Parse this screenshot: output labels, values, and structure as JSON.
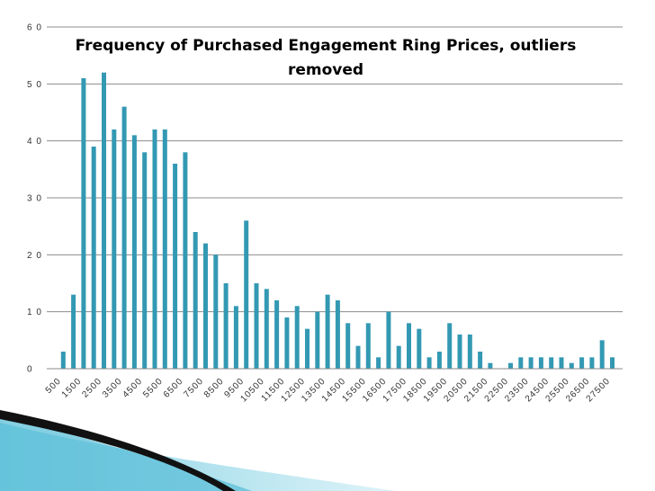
{
  "chart_data": {
    "type": "bar",
    "title": "Frequency of Purchased Engagement Ring Prices, outliers removed",
    "title_lines": [
      "Frequency of Purchased Engagement Ring Prices, outliers",
      "removed"
    ],
    "xlabel": "",
    "ylabel": "",
    "ylim": [
      0,
      60
    ],
    "yticks": [
      0,
      10,
      20,
      30,
      40,
      50,
      60
    ],
    "ytick_labels": [
      "0",
      "1 0",
      "2 0",
      "3 0",
      "4 0",
      "5 0",
      "6 0"
    ],
    "grid": true,
    "legend": "none",
    "bar_color": "#3399b3",
    "categories": [
      500,
      1000,
      1500,
      2000,
      2500,
      3000,
      3500,
      4000,
      4500,
      5000,
      5500,
      6000,
      6500,
      7000,
      7500,
      8000,
      8500,
      9000,
      9500,
      10000,
      10500,
      11000,
      11500,
      12000,
      12500,
      13000,
      13500,
      14000,
      14500,
      15000,
      15500,
      16000,
      16500,
      17000,
      17500,
      18000,
      18500,
      19000,
      19500,
      20000,
      20500,
      21000,
      21500,
      22000,
      22500,
      23000,
      23500,
      24000,
      24500,
      25000,
      25500,
      26000,
      26500,
      27000,
      27500,
      28000
    ],
    "values": [
      3,
      13,
      51,
      39,
      52,
      42,
      46,
      41,
      38,
      42,
      42,
      36,
      38,
      24,
      22,
      20,
      15,
      11,
      26,
      15,
      14,
      12,
      9,
      11,
      7,
      10,
      13,
      12,
      8,
      4,
      8,
      2,
      10,
      4,
      8,
      7,
      2,
      3,
      8,
      6,
      6,
      3,
      1,
      0,
      1,
      2,
      2,
      2,
      2,
      2,
      1,
      2,
      2,
      5,
      2,
      0
    ],
    "x_tick_labels": [
      "500",
      "1500",
      "2500",
      "3500",
      "4500",
      "5500",
      "6500",
      "7500",
      "8500",
      "9500",
      "10500",
      "11500",
      "12500",
      "13500",
      "14500",
      "15500",
      "16500",
      "17500",
      "18500",
      "19500",
      "20500",
      "21500",
      "22500",
      "23500",
      "24500",
      "25500",
      "26500",
      "27500"
    ]
  }
}
